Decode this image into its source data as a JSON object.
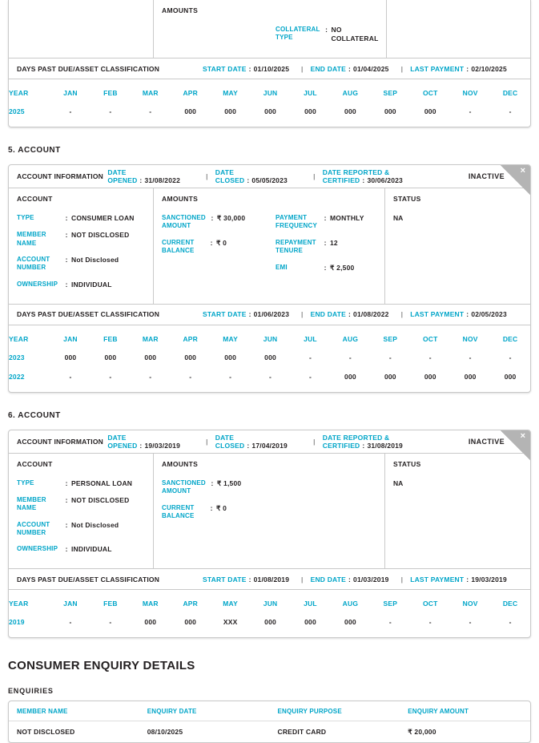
{
  "colors": {
    "accent": "#00a5c8",
    "text": "#231f20",
    "border": "#c9c9c9",
    "corner_fold": "#b4b4b4"
  },
  "labels": {
    "year_header": "YEAR",
    "months": [
      "JAN",
      "FEB",
      "MAR",
      "APR",
      "MAY",
      "JUN",
      "JUL",
      "AUG",
      "SEP",
      "OCT",
      "NOV",
      "DEC"
    ],
    "dpd_title": "DAYS PAST DUE/ASSET CLASSIFICATION",
    "start_date": "START DATE",
    "end_date": "END DATE",
    "last_payment": "LAST PAYMENT",
    "account_information": "ACCOUNT INFORMATION",
    "date_opened": "DATE OPENED",
    "date_closed": "DATE CLOSED",
    "date_reported": "DATE REPORTED & CERTIFIED",
    "account": "ACCOUNT",
    "amounts": "AMOUNTS",
    "status": "STATUS",
    "close": "×",
    "pipe": "|",
    "colon": ":"
  },
  "partial_account": {
    "collateral": {
      "label": "COLLATERAL TYPE",
      "value": "NO COLLATERAL"
    },
    "dpd": {
      "start": "01/10/2025",
      "end": "01/04/2025",
      "last": "02/10/2025"
    },
    "dpd_rows": [
      {
        "year": "2025",
        "values": [
          "-",
          "-",
          "-",
          "000",
          "000",
          "000",
          "000",
          "000",
          "000",
          "000",
          "-",
          "-"
        ]
      }
    ]
  },
  "account5": {
    "section_title": "5. ACCOUNT",
    "status_badge": "INACTIVE",
    "dates": {
      "opened": "31/08/2022",
      "closed": "05/05/2023",
      "reported": "30/06/2023"
    },
    "account_rows": [
      {
        "label": "TYPE",
        "value": "CONSUMER LOAN"
      },
      {
        "label": "MEMBER NAME",
        "value": "NOT DISCLOSED"
      },
      {
        "label": "ACCOUNT NUMBER",
        "value": "Not Disclosed"
      },
      {
        "label": "OWNERSHIP",
        "value": "INDIVIDUAL"
      }
    ],
    "amounts_left": [
      {
        "label": "SANCTIONED AMOUNT",
        "value": "₹ 30,000"
      },
      {
        "label": "CURRENT BALANCE",
        "value": "₹ 0"
      }
    ],
    "amounts_right": [
      {
        "label": "PAYMENT FREQUENCY",
        "value": "MONTHLY"
      },
      {
        "label": "REPAYMENT TENURE",
        "value": "12"
      },
      {
        "label": "EMI",
        "value": "₹ 2,500"
      }
    ],
    "status_value": "NA",
    "dpd": {
      "start": "01/06/2023",
      "end": "01/08/2022",
      "last": "02/05/2023"
    },
    "dpd_rows": [
      {
        "year": "2023",
        "values": [
          "000",
          "000",
          "000",
          "000",
          "000",
          "000",
          "-",
          "-",
          "-",
          "-",
          "-",
          "-"
        ]
      },
      {
        "year": "2022",
        "values": [
          "-",
          "-",
          "-",
          "-",
          "-",
          "-",
          "-",
          "000",
          "000",
          "000",
          "000",
          "000"
        ]
      }
    ]
  },
  "account6": {
    "section_title": "6. ACCOUNT",
    "status_badge": "INACTIVE",
    "dates": {
      "opened": "19/03/2019",
      "closed": "17/04/2019",
      "reported": "31/08/2019"
    },
    "account_rows": [
      {
        "label": "TYPE",
        "value": "PERSONAL LOAN"
      },
      {
        "label": "MEMBER NAME",
        "value": "NOT DISCLOSED"
      },
      {
        "label": "ACCOUNT NUMBER",
        "value": "Not Disclosed"
      },
      {
        "label": "OWNERSHIP",
        "value": "INDIVIDUAL"
      }
    ],
    "amounts_left": [
      {
        "label": "SANCTIONED AMOUNT",
        "value": "₹ 1,500"
      },
      {
        "label": "CURRENT BALANCE",
        "value": "₹ 0"
      }
    ],
    "amounts_right": [],
    "status_value": "NA",
    "dpd": {
      "start": "01/08/2019",
      "end": "01/03/2019",
      "last": "19/03/2019"
    },
    "dpd_rows": [
      {
        "year": "2019",
        "values": [
          "-",
          "-",
          "000",
          "000",
          "XXX",
          "000",
          "000",
          "000",
          "-",
          "-",
          "-",
          "-"
        ]
      }
    ]
  },
  "enquiry": {
    "title": "CONSUMER ENQUIRY DETAILS",
    "subtitle": "ENQUIRIES",
    "columns": [
      "MEMBER NAME",
      "ENQUIRY DATE",
      "ENQUIRY PURPOSE",
      "ENQUIRY AMOUNT"
    ],
    "rows": [
      [
        "NOT DISCLOSED",
        "08/10/2025",
        "CREDIT CARD",
        "₹ 20,000"
      ]
    ]
  }
}
